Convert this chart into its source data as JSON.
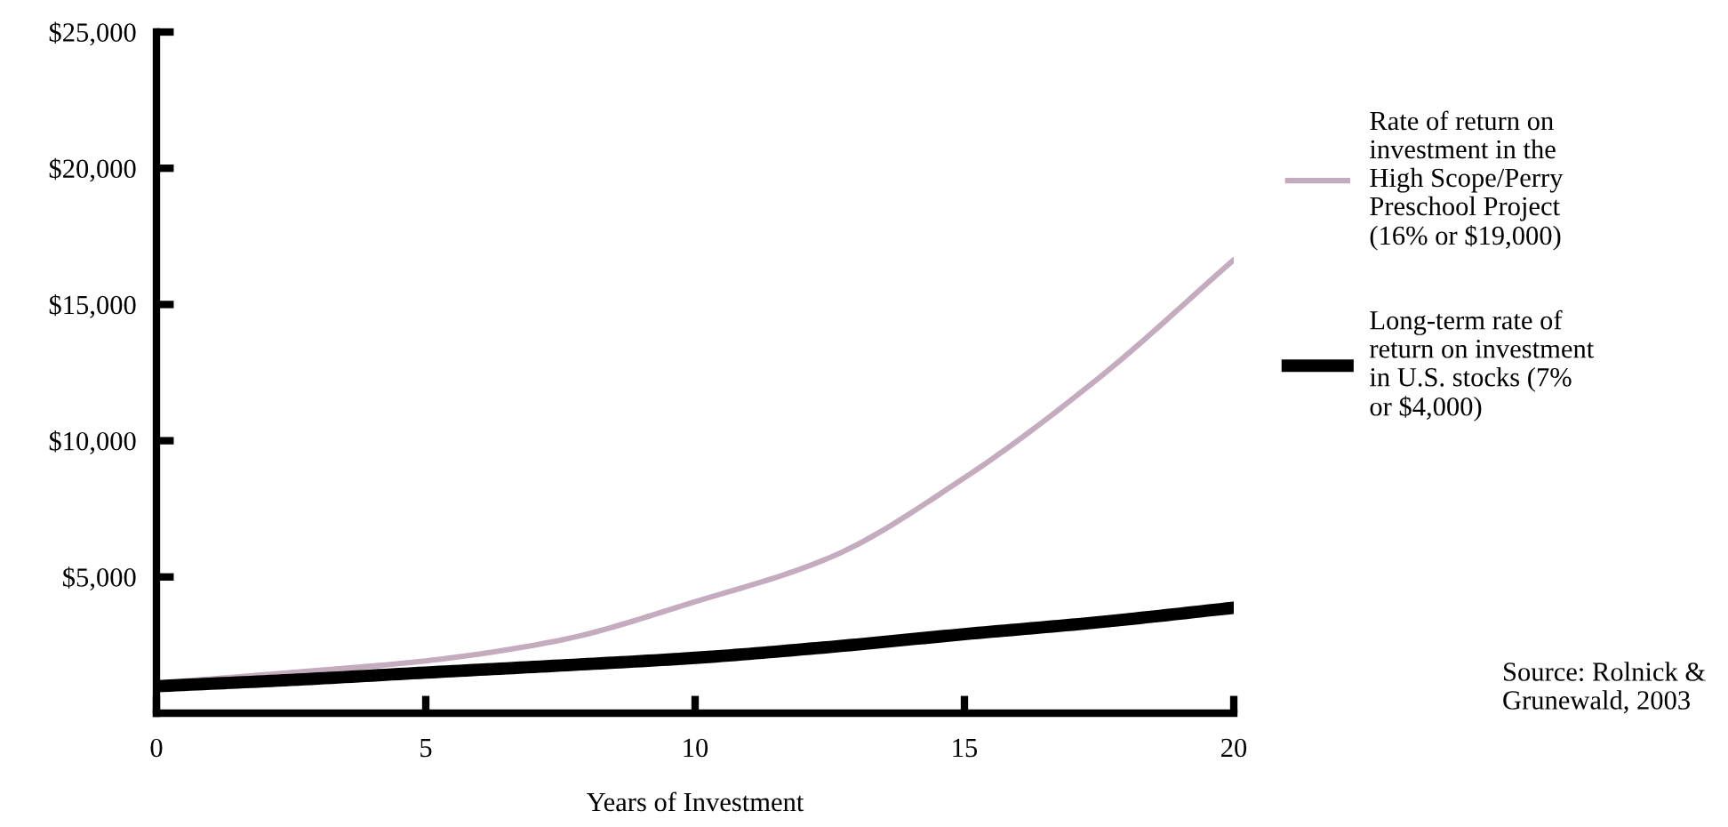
{
  "chart_data": {
    "type": "line",
    "xlabel": "Years of Investment",
    "x": [
      0,
      2.5,
      5,
      7.5,
      10,
      12.5,
      15,
      17.5,
      20
    ],
    "xlim": [
      0,
      20
    ],
    "xticks": [
      0,
      5,
      10,
      15,
      20
    ],
    "ylim": [
      0,
      25000
    ],
    "yticks": [
      {
        "value": 5000,
        "label": "$5,000"
      },
      {
        "value": 10000,
        "label": "$10,000"
      },
      {
        "value": 15000,
        "label": "$15,000"
      },
      {
        "value": 20000,
        "label": "$20,000"
      },
      {
        "value": 25000,
        "label": "$25,000"
      }
    ],
    "series": [
      {
        "name": "Rate of return on\ninvestment in the\nHigh Scope/Perry\nPreschool Project\n(16% or $19,000)",
        "color": "#c4abbd",
        "values": [
          1100,
          1490,
          1920,
          2680,
          4090,
          5710,
          8640,
          12310,
          16640
        ]
      },
      {
        "name": "Long-term rate of\nreturn on investment\nin U.S. stocks (7%\nor $4,000)",
        "color": "#000000",
        "values": [
          990,
          1220,
          1490,
          1750,
          2030,
          2430,
          2900,
          3340,
          3870
        ]
      }
    ],
    "legend": "right",
    "grid": false,
    "marker": "none",
    "line_style": "solid",
    "annotations": [
      "Source: Rolnick &\nGrunewald, 2003"
    ]
  }
}
